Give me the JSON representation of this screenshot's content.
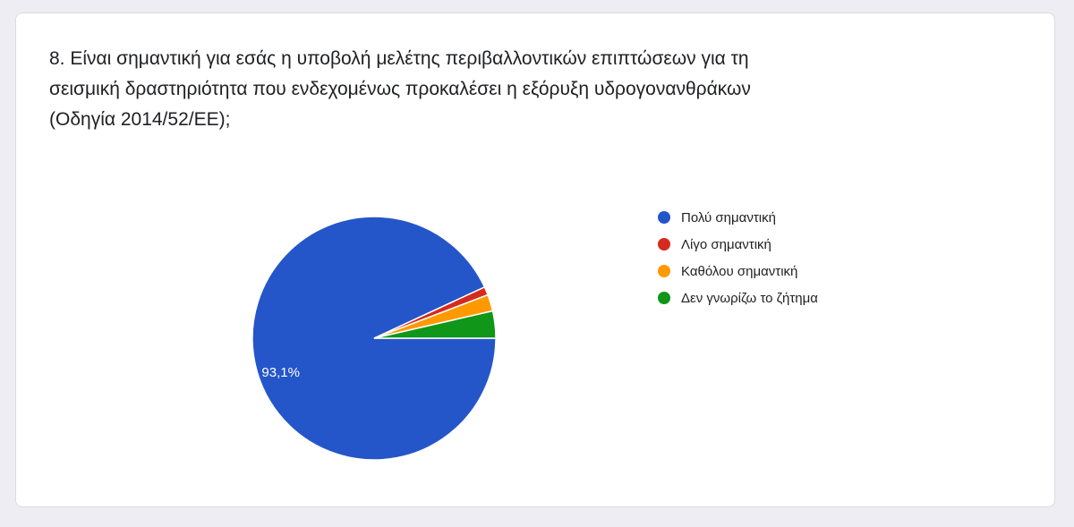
{
  "question": {
    "lines": [
      "8. Είναι σημαντική για εσάς η υποβολή μελέτης περιβαλλοντικών επιπτώσεων για τη",
      "σεισμική δραστηριότητα που ενδεχομένως προκαλέσει η εξόρυξη υδρογονανθράκων",
      "(Οδηγία 2014/52/ΕΕ);"
    ]
  },
  "chart_data": {
    "type": "pie",
    "title": "8. Είναι σημαντική για εσάς η υποβολή μελέτης περιβαλλοντικών επιπτώσεων για τη σεισμική δραστηριότητα που ενδεχομένως προκαλέσει η εξόρυξη υδρογονανθράκων (Οδηγία 2014/52/ΕΕ);",
    "categories": [
      "Πολύ σημαντική",
      "Λίγο σημαντική",
      "Καθόλου σημαντική",
      "Δεν γνωρίζω το ζήτημα"
    ],
    "values": [
      93.1,
      1.1,
      2.2,
      3.6
    ],
    "unit": "%",
    "data_labels": [
      "93,1%",
      "",
      "",
      ""
    ],
    "colors": [
      "#2456c9",
      "#d52b1e",
      "#ff9900",
      "#109618"
    ],
    "legend_position": "right"
  }
}
